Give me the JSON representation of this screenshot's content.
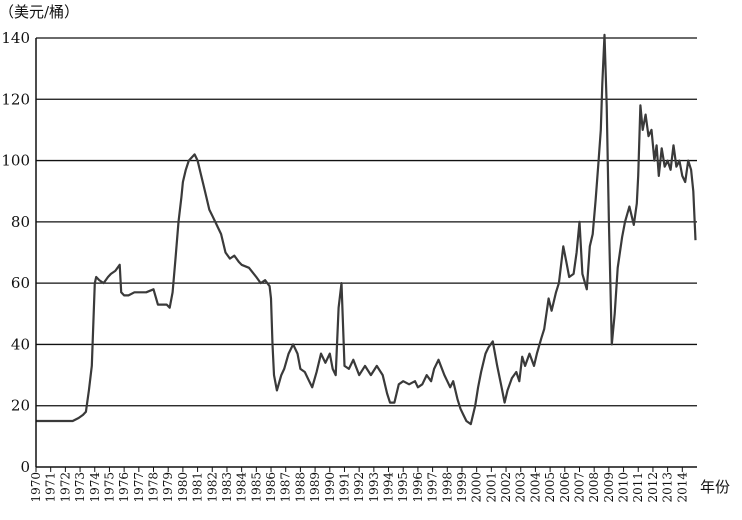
{
  "chart_data": {
    "type": "line",
    "ylabel": "（美元/桶）",
    "xlabel": "年份",
    "ylim": [
      0,
      140
    ],
    "xlim": [
      1970,
      2015
    ],
    "yticks": [
      0,
      20,
      40,
      60,
      80,
      100,
      120,
      140
    ],
    "xticks": [
      "1970",
      "1971",
      "1972",
      "1973",
      "1974",
      "1975",
      "1976",
      "1977",
      "1978",
      "1979",
      "1980",
      "1981",
      "1982",
      "1983",
      "1984",
      "1985",
      "1986",
      "1987",
      "1988",
      "1989",
      "1990",
      "1991",
      "1992",
      "1993",
      "1994",
      "1995",
      "1996",
      "1997",
      "1998",
      "1999",
      "2000",
      "2001",
      "2002",
      "2003",
      "2004",
      "2005",
      "2006",
      "2007",
      "2008",
      "2009",
      "2010",
      "2011",
      "2012",
      "2013",
      "2014"
    ],
    "grid": "horizontal",
    "line_color": "#3a3a3a",
    "series": [
      {
        "x": [
          1970.0,
          1971.0,
          1972.0,
          1972.5,
          1972.9,
          1973.2,
          1973.4,
          1973.6,
          1973.8,
          1974.0,
          1974.1,
          1974.3,
          1974.6,
          1974.9,
          1975.1,
          1975.4,
          1975.7,
          1975.8,
          1976.0,
          1976.3,
          1976.7,
          1977.0,
          1977.5,
          1978.0,
          1978.3,
          1978.5,
          1978.9,
          1979.1,
          1979.3,
          1979.5,
          1979.7,
          1979.9,
          1980.0,
          1980.2,
          1980.4,
          1980.6,
          1980.8,
          1981.0,
          1981.2,
          1981.4,
          1981.6,
          1981.8,
          1982.0,
          1982.3,
          1982.6,
          1982.9,
          1983.2,
          1983.5,
          1983.8,
          1984.0,
          1984.5,
          1985.0,
          1985.3,
          1985.6,
          1985.9,
          1986.0,
          1986.1,
          1986.2,
          1986.4,
          1986.7,
          1986.9,
          1987.2,
          1987.5,
          1987.8,
          1988.0,
          1988.3,
          1988.6,
          1988.8,
          1989.1,
          1989.4,
          1989.7,
          1990.0,
          1990.2,
          1990.4,
          1990.6,
          1990.8,
          1991.0,
          1991.3,
          1991.6,
          1992.0,
          1992.4,
          1992.8,
          1993.2,
          1993.6,
          1993.9,
          1994.1,
          1994.4,
          1994.7,
          1995.0,
          1995.4,
          1995.8,
          1996.0,
          1996.3,
          1996.6,
          1996.9,
          1997.1,
          1997.4,
          1997.8,
          1998.0,
          1998.2,
          1998.4,
          1998.7,
          1998.9,
          1999.1,
          1999.3,
          1999.6,
          1999.9,
          2000.1,
          2000.3,
          2000.6,
          2000.8,
          2001.1,
          2001.4,
          2001.7,
          2001.9,
          2002.1,
          2002.4,
          2002.7,
          2002.9,
          2003.1,
          2003.3,
          2003.6,
          2003.9,
          2004.1,
          2004.4,
          2004.6,
          2004.9,
          2005.1,
          2005.4,
          2005.6,
          2005.9,
          2006.1,
          2006.3,
          2006.6,
          2006.8,
          2007.0,
          2007.2,
          2007.5,
          2007.7,
          2007.9,
          2008.1,
          2008.3,
          2008.45,
          2008.55,
          2008.7,
          2008.85,
          2009.0,
          2009.2,
          2009.4,
          2009.6,
          2009.9,
          2010.1,
          2010.4,
          2010.7,
          2010.9,
          2011.0,
          2011.15,
          2011.3,
          2011.5,
          2011.7,
          2011.9,
          2012.1,
          2012.25,
          2012.4,
          2012.6,
          2012.8,
          2013.0,
          2013.2,
          2013.4,
          2013.6,
          2013.8,
          2014.0,
          2014.2,
          2014.4,
          2014.6,
          2014.75,
          2014.9
        ],
        "values": [
          15,
          15,
          15,
          15,
          16,
          17,
          18,
          25,
          33,
          60,
          62,
          61,
          60,
          62,
          63,
          64,
          66,
          57,
          56,
          56,
          57,
          57,
          57,
          58,
          53,
          53,
          53,
          52,
          57,
          68,
          80,
          88,
          93,
          97,
          100,
          101,
          102,
          100,
          96,
          92,
          88,
          84,
          82,
          79,
          76,
          70,
          68,
          69,
          67,
          66,
          65,
          62,
          60,
          61,
          59,
          55,
          40,
          30,
          25,
          30,
          32,
          37,
          40,
          37,
          32,
          31,
          28,
          26,
          31,
          37,
          34,
          37,
          32,
          30,
          52,
          60,
          33,
          32,
          35,
          30,
          33,
          30,
          33,
          30,
          24,
          21,
          21,
          27,
          28,
          27,
          28,
          26,
          27,
          30,
          28,
          32,
          35,
          30,
          28,
          26,
          28,
          22,
          19,
          17,
          15,
          14,
          20,
          26,
          31,
          37,
          39,
          41,
          33,
          26,
          21,
          25,
          29,
          31,
          28,
          36,
          33,
          37,
          33,
          37,
          42,
          45,
          55,
          51,
          57,
          60,
          72,
          67,
          62,
          63,
          70,
          80,
          63,
          58,
          72,
          76,
          87,
          100,
          110,
          125,
          141,
          118,
          80,
          40,
          50,
          65,
          75,
          80,
          85,
          79,
          86,
          95,
          118,
          110,
          115,
          108,
          110,
          100,
          105,
          95,
          104,
          98,
          100,
          97,
          105,
          98,
          100,
          95,
          93,
          100,
          97,
          90,
          74
        ]
      }
    ]
  }
}
